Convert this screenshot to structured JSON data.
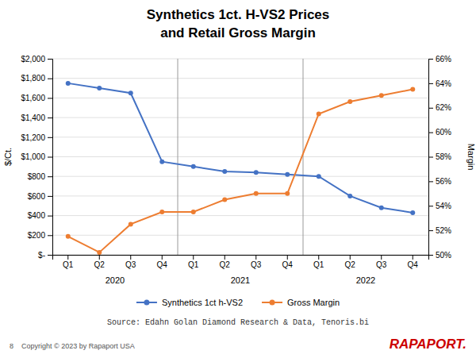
{
  "chart_data": {
    "type": "line",
    "title": "Synthetics 1ct. H-VS2 Prices",
    "subtitle": "and Retail Gross Margin",
    "y_label": "$/Ct.",
    "y2_label": "Margin",
    "categories": [
      "Q1",
      "Q2",
      "Q3",
      "Q4",
      "Q1",
      "Q2",
      "Q3",
      "Q4",
      "Q1",
      "Q2",
      "Q3",
      "Q4"
    ],
    "x_group_labels": [
      "2020",
      "2021",
      "2022"
    ],
    "series": [
      {
        "name": "Synthetics 1ct h-VS2",
        "color": "#4472C4",
        "marker": "circle",
        "values": [
          1750,
          1700,
          1650,
          950,
          900,
          850,
          840,
          820,
          800,
          600,
          480,
          430
        ]
      },
      {
        "name": "Gross Margin",
        "color": "#ED7D31",
        "marker": "circle",
        "axis": "y2",
        "values": [
          51.5,
          50.2,
          52.5,
          53.5,
          53.5,
          54.5,
          55.0,
          55.0,
          61.5,
          62.5,
          63.0,
          63.5
        ]
      }
    ],
    "ylim": [
      0,
      2000
    ],
    "yticks": [
      {
        "value": 0,
        "label": "$-"
      },
      {
        "value": 200,
        "label": "$200"
      },
      {
        "value": 400,
        "label": "$400"
      },
      {
        "value": 600,
        "label": "$600"
      },
      {
        "value": 800,
        "label": "$800"
      },
      {
        "value": 1000,
        "label": "$1,000"
      },
      {
        "value": 1200,
        "label": "$1,200"
      },
      {
        "value": 1400,
        "label": "$1,400"
      },
      {
        "value": 1600,
        "label": "$1,600"
      },
      {
        "value": 1800,
        "label": "$1,800"
      },
      {
        "value": 2000,
        "label": "$2,000"
      }
    ],
    "y2lim": [
      50,
      66
    ],
    "y2ticks": [
      {
        "value": 50,
        "label": "50%"
      },
      {
        "value": 52,
        "label": "52%"
      },
      {
        "value": 54,
        "label": "54%"
      },
      {
        "value": 56,
        "label": "56%"
      },
      {
        "value": 58,
        "label": "58%"
      },
      {
        "value": 60,
        "label": "60%"
      },
      {
        "value": 62,
        "label": "62%"
      },
      {
        "value": 64,
        "label": "64%"
      },
      {
        "value": 66,
        "label": "66%"
      }
    ],
    "grid": true,
    "legend": "bottom",
    "source": "Source: Edahn Golan Diamond Research & Data, Tenoris.bi",
    "footer_left": "8    Copyright © 2023 by Rapaport USA",
    "footer_right": "RAPAPORT."
  }
}
